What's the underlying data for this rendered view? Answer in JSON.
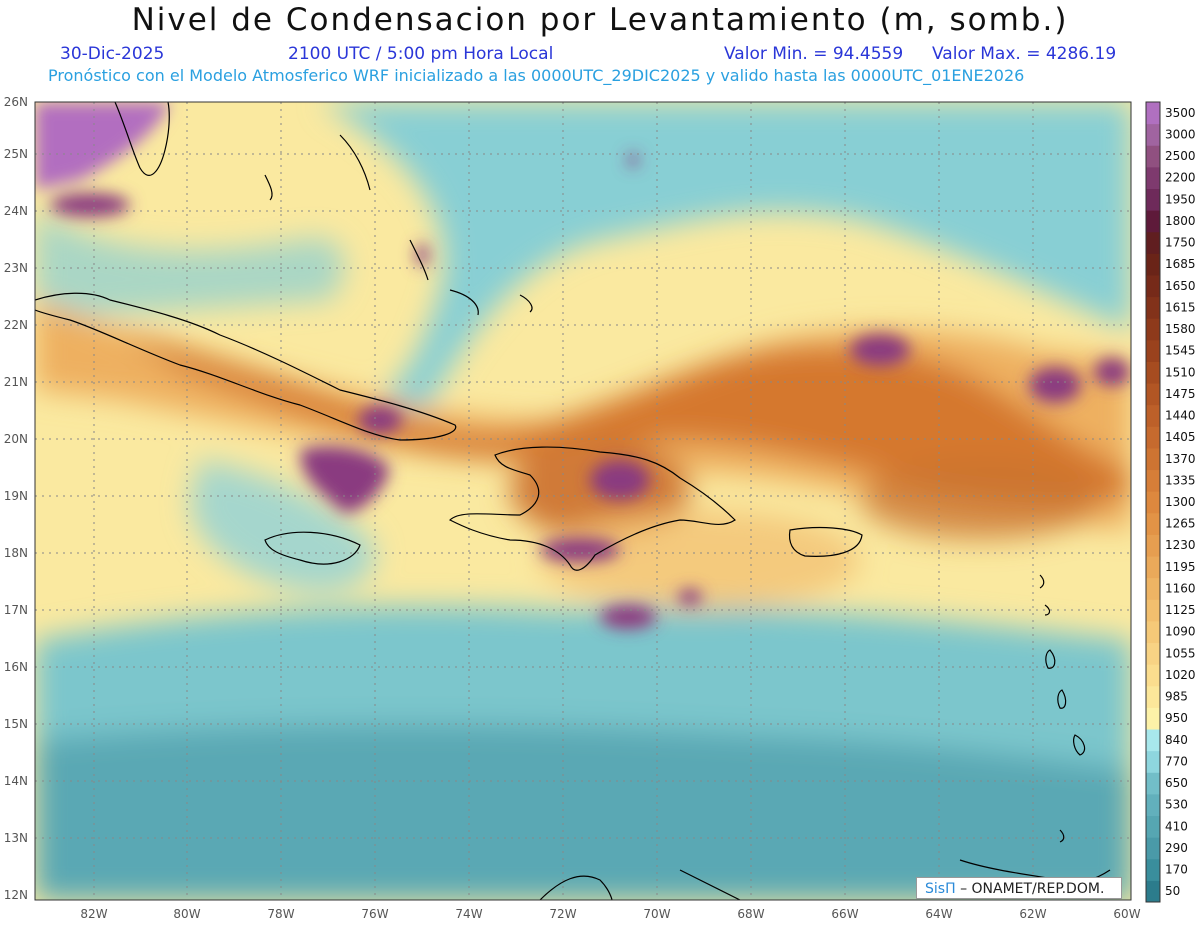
{
  "header": {
    "title": "Nivel de Condensacion por Levantamiento (m, somb.)",
    "date": "30-Dic-2025",
    "time": "2100 UTC / 5:00 pm Hora Local",
    "valmin": "Valor Min. = 94.4559",
    "valmax": "Valor Max. = 4286.19",
    "subtitle": "Pronóstico con el Modelo Atmosferico WRF inicializado a las 0000UTC_29DIC2025 y valido hasta las  0000UTC_01ENE2026"
  },
  "map": {
    "lon_range": [
      -83.2,
      -60.0
    ],
    "lat_range": [
      12.0,
      26.0
    ],
    "lon_ticks": [
      "82W",
      "80W",
      "78W",
      "76W",
      "74W",
      "72W",
      "70W",
      "68W",
      "66W",
      "64W",
      "62W",
      "60W"
    ],
    "lat_ticks": [
      "12N",
      "13N",
      "14N",
      "15N",
      "16N",
      "17N",
      "18N",
      "19N",
      "20N",
      "21N",
      "22N",
      "23N",
      "24N",
      "25N",
      "26N"
    ]
  },
  "colorbar": {
    "levels": [
      "50",
      "170",
      "290",
      "410",
      "530",
      "650",
      "770",
      "840",
      "950",
      "985",
      "1020",
      "1055",
      "1090",
      "1125",
      "1160",
      "1195",
      "1230",
      "1265",
      "1300",
      "1335",
      "1370",
      "1405",
      "1440",
      "1475",
      "1510",
      "1545",
      "1580",
      "1615",
      "1650",
      "1685",
      "1750",
      "1800",
      "1950",
      "2200",
      "2500",
      "3000",
      "3500"
    ],
    "colors": [
      "#2c7c8c",
      "#3a8e9c",
      "#4a9aa8",
      "#56a6b2",
      "#62b0bc",
      "#72bec8",
      "#8ed6de",
      "#a8e8ec",
      "#fdf2a8",
      "#fce79a",
      "#fbdd8e",
      "#f8d384",
      "#f5c978",
      "#f2bf6e",
      "#eeb464",
      "#eaa95a",
      "#e69e50",
      "#e29346",
      "#dd883e",
      "#d67e38",
      "#ce7432",
      "#c66a2e",
      "#bd6029",
      "#b25624",
      "#a64c20",
      "#9a421d",
      "#8e3a1b",
      "#82321a",
      "#762a19",
      "#6a2418",
      "#601e20",
      "#5e1a3a",
      "#6e2a5a",
      "#7e3a6e",
      "#905080",
      "#a064a0",
      "#b070c0"
    ]
  },
  "credit": {
    "logo": "SisΠ",
    "text": "– ONAMET/REP.DOM."
  }
}
